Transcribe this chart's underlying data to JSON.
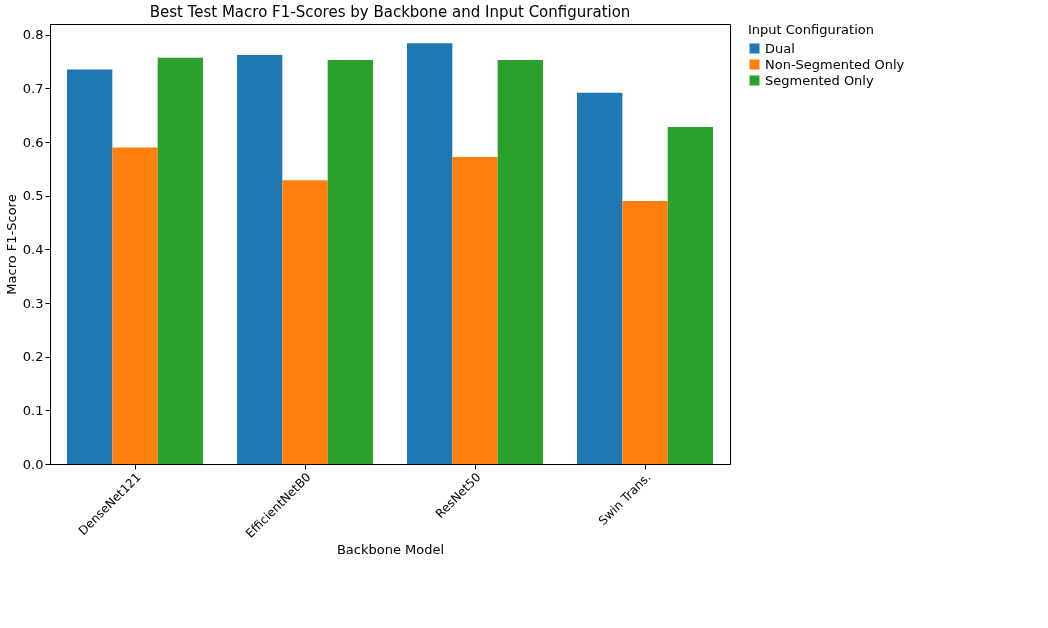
{
  "chart_data": {
    "type": "bar",
    "title": "Best Test Macro F1-Scores by Backbone and Input Configuration",
    "xlabel": "Backbone Model",
    "ylabel": "Macro F1-Score",
    "legend_title": "Input Configuration",
    "categories": [
      "DenseNet121",
      "EfficientNetB0",
      "ResNet50",
      "Swin Trans."
    ],
    "series": [
      {
        "name": "Dual",
        "color": "#1f77b4",
        "values": [
          0.735,
          0.762,
          0.784,
          0.692
        ]
      },
      {
        "name": "Non-Segmented Only",
        "color": "#ff7f0e",
        "values": [
          0.59,
          0.529,
          0.572,
          0.49
        ]
      },
      {
        "name": "Segmented Only",
        "color": "#2ca02c",
        "values": [
          0.757,
          0.753,
          0.753,
          0.628
        ]
      }
    ],
    "ylim": [
      0,
      0.82
    ],
    "yticks": [
      {
        "value": 0,
        "label": "0.0"
      },
      0.1,
      0.2,
      0.3,
      0.4,
      0.5,
      0.6,
      0.7,
      0.8
    ],
    "grid": false,
    "legend": "top right"
  }
}
